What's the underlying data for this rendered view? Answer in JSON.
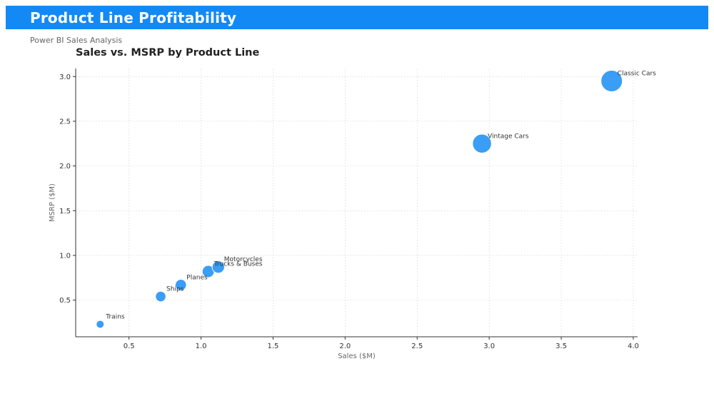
{
  "header": {
    "title": "Product Line Profitability",
    "subtitle": "Power BI Sales Analysis"
  },
  "colors": {
    "header_bg": "#1389f5",
    "marker": "#1f8ff5"
  },
  "chart_data": {
    "type": "scatter",
    "title": "Sales vs. MSRP by Product Line",
    "xlabel": "Sales ($M)",
    "ylabel": "MSRP ($M)",
    "xlim": [
      0.13,
      4.03
    ],
    "ylim": [
      0.09,
      3.09
    ],
    "xticks": [
      "0.5",
      "1.0",
      "1.5",
      "2.0",
      "2.5",
      "3.0",
      "3.5",
      "4.0"
    ],
    "yticks": [
      "0.5",
      "1.0",
      "1.5",
      "2.0",
      "2.5",
      "3.0"
    ],
    "grid": true,
    "points": [
      {
        "label": "Trains",
        "x": 0.3,
        "y": 0.23,
        "size": 0.3
      },
      {
        "label": "Ships",
        "x": 0.72,
        "y": 0.54,
        "size": 0.72
      },
      {
        "label": "Planes",
        "x": 0.86,
        "y": 0.67,
        "size": 0.86
      },
      {
        "label": "Trucks & Buses",
        "x": 1.05,
        "y": 0.82,
        "size": 1.05
      },
      {
        "label": "Motorcycles",
        "x": 1.12,
        "y": 0.87,
        "size": 1.12
      },
      {
        "label": "Vintage Cars",
        "x": 2.95,
        "y": 2.25,
        "size": 2.95
      },
      {
        "label": "Classic Cars",
        "x": 3.85,
        "y": 2.95,
        "size": 3.85
      }
    ]
  }
}
